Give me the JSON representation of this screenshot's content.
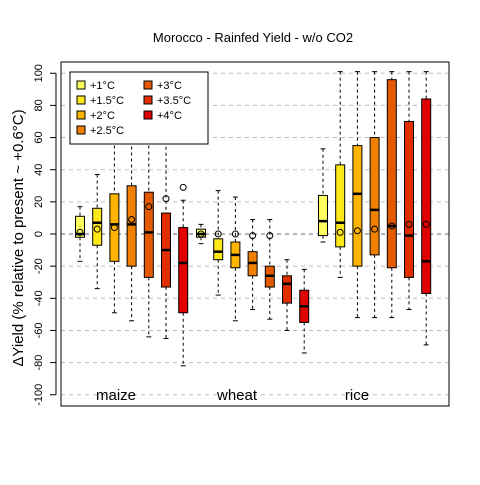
{
  "chart_data": {
    "type": "boxplot",
    "title": "Morocco - Rainfed Yield - w/o CO2",
    "ylabel": "ΔYield (% relative to present ~ +0.6°C)",
    "xlabel": "",
    "ylim": [
      -107,
      107
    ],
    "yticks": [
      -100,
      -80,
      -60,
      -40,
      -20,
      0,
      20,
      40,
      60,
      80,
      100
    ],
    "grid": true,
    "legend_position": "top-left",
    "series": [
      {
        "name": "+1°C",
        "color": "#ffff60"
      },
      {
        "name": "+1.5°C",
        "color": "#ffe81a"
      },
      {
        "name": "+2°C",
        "color": "#ffb400"
      },
      {
        "name": "+2.5°C",
        "color": "#f08000"
      },
      {
        "name": "+3°C",
        "color": "#e45a00"
      },
      {
        "name": "+3.5°C",
        "color": "#e02e00"
      },
      {
        "name": "+4°C",
        "color": "#e00000"
      }
    ],
    "groups": [
      {
        "name": "maize",
        "boxes": [
          {
            "series": "+1°C",
            "whisker_low": -17,
            "q1": -2,
            "median": 0,
            "q3": 11,
            "whisker_high": 17,
            "marker": 1
          },
          {
            "series": "+1.5°C",
            "whisker_low": -34,
            "q1": -7,
            "median": 7,
            "q3": 16,
            "whisker_high": 37,
            "marker": 3
          },
          {
            "series": "+2°C",
            "whisker_low": -49,
            "q1": -17,
            "median": 6,
            "q3": 25,
            "whisker_high": 70,
            "marker": 4
          },
          {
            "series": "+2.5°C",
            "whisker_low": -54,
            "q1": -20,
            "median": 6,
            "q3": 30,
            "whisker_high": 88,
            "marker": 9
          },
          {
            "series": "+3°C",
            "whisker_low": -64,
            "q1": -27,
            "median": 1,
            "q3": 26,
            "whisker_high": 96,
            "marker": 17
          },
          {
            "series": "+3.5°C",
            "whisker_low": -65,
            "q1": -33,
            "median": -10,
            "q3": 13,
            "whisker_high": 58,
            "marker": 22
          },
          {
            "series": "+4°C",
            "whisker_low": -82,
            "q1": -49,
            "median": -18,
            "q3": 4,
            "whisker_high": 21,
            "marker": 29
          }
        ]
      },
      {
        "name": "wheat",
        "boxes": [
          {
            "series": "+1°C",
            "whisker_low": -6,
            "q1": -2,
            "median": 0,
            "q3": 3,
            "whisker_high": 6,
            "marker": 0
          },
          {
            "series": "+1.5°C",
            "whisker_low": -38,
            "q1": -16,
            "median": -11,
            "q3": -3,
            "whisker_high": 27,
            "marker": 0
          },
          {
            "series": "+2°C",
            "whisker_low": -54,
            "q1": -21,
            "median": -13,
            "q3": -5,
            "whisker_high": 23,
            "marker": 0
          },
          {
            "series": "+2.5°C",
            "whisker_low": -47,
            "q1": -26,
            "median": -18,
            "q3": -11,
            "whisker_high": 9,
            "marker": -1
          },
          {
            "series": "+3°C",
            "whisker_low": -53,
            "q1": -33,
            "median": -26,
            "q3": -20,
            "whisker_high": 9,
            "marker": -1
          },
          {
            "series": "+3.5°C",
            "whisker_low": -60,
            "q1": -43,
            "median": -31,
            "q3": -26,
            "whisker_high": -16,
            "marker": null
          },
          {
            "series": "+4°C",
            "whisker_low": -74,
            "q1": -55,
            "median": -45,
            "q3": -35,
            "whisker_high": -22,
            "marker": null
          }
        ]
      },
      {
        "name": "rice",
        "boxes": [
          {
            "series": "+1°C",
            "whisker_low": -5,
            "q1": -1,
            "median": 8,
            "q3": 24,
            "whisker_high": 53,
            "marker": null
          },
          {
            "series": "+1.5°C",
            "whisker_low": -27,
            "q1": -8,
            "median": 7,
            "q3": 43,
            "whisker_high": 101,
            "marker": 1
          },
          {
            "series": "+2°C",
            "whisker_low": -52,
            "q1": -20,
            "median": 25,
            "q3": 55,
            "whisker_high": 101,
            "marker": 2
          },
          {
            "series": "+2.5°C",
            "whisker_low": -52,
            "q1": -13,
            "median": 15,
            "q3": 60,
            "whisker_high": 101,
            "marker": 3
          },
          {
            "series": "+3°C",
            "whisker_low": -52,
            "q1": -21,
            "median": 5,
            "q3": 96,
            "whisker_high": 101,
            "marker": 5
          },
          {
            "series": "+3.5°C",
            "whisker_low": -47,
            "q1": -27,
            "median": -1,
            "q3": 70,
            "whisker_high": 101,
            "marker": 6
          },
          {
            "series": "+4°C",
            "whisker_low": -69,
            "q1": -37,
            "median": -17,
            "q3": 84,
            "whisker_high": 101,
            "marker": 6
          }
        ]
      }
    ]
  }
}
